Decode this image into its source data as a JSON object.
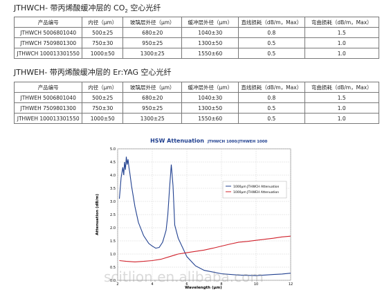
{
  "section1": {
    "title": "JTHWCH- 带丙烯酸缓冲层的 CO",
    "title_sub": "2",
    "title_end": " 空心光纤"
  },
  "table1": {
    "headers": [
      "产品编号",
      "内径（μm）",
      "玻璃层外径（μm）",
      "缓冲层外径（μm）",
      "直线损耗（dB/m，Max）",
      "弯曲损耗（dB/m，Max）"
    ],
    "rows": [
      [
        "JTHWCH 5006801040",
        "500±25",
        "680±20",
        "1040±30",
        "0.8",
        "1.5"
      ],
      [
        "JTHWCH 7509801300",
        "750±30",
        "950±25",
        "1300±50",
        "0.5",
        "1.0"
      ],
      [
        "JTHWCH 100013301550",
        "1000±50",
        "1300±25",
        "1550±60",
        "0.5",
        "1.0"
      ]
    ]
  },
  "section2": {
    "title": "JTHWEH- 带丙烯酸缓冲层的 Er:YAG 空心光纤"
  },
  "table2": {
    "headers": [
      "产品编号",
      "内径（μm）",
      "玻璃层外径（μm）",
      "缓冲层外径（μm）",
      "直线损耗（dB/m，Max）",
      "弯曲损耗（dB/m，Max）"
    ],
    "rows": [
      [
        "JTHWEH 5006801040",
        "500±25",
        "680±20",
        "1040±30",
        "0.8",
        "1.5"
      ],
      [
        "JTHWEH 7509801300",
        "750±30",
        "950±25",
        "1300±50",
        "0.5",
        "1.0"
      ],
      [
        "JTHWEH 100013301550",
        "1000±50",
        "1300±25",
        "1550±60",
        "0.5",
        "1.0"
      ]
    ]
  },
  "chart_data": {
    "type": "line",
    "title": "HSW Attenuation",
    "subtitle": "JTHWCH 1000/JTHWEH 1000",
    "x_label": "Wavelength (μm)",
    "y_label": "Attenuation (dB/m)",
    "xlim": [
      2,
      12
    ],
    "xticks": [
      2,
      4,
      6,
      8,
      10,
      12
    ],
    "ylim": [
      0,
      5
    ],
    "yticks": [
      {
        "value": 0,
        "label": "0.0"
      },
      {
        "value": 0.5,
        "label": "0.5"
      },
      {
        "value": 1,
        "label": "1.0"
      },
      {
        "value": 1.5,
        "label": "1.5"
      },
      {
        "value": 2,
        "label": "2.0"
      },
      {
        "value": 2.5,
        "label": "2.5"
      },
      {
        "value": 3,
        "label": "3.0"
      },
      {
        "value": 3.5,
        "label": "3.5"
      },
      {
        "value": 4,
        "label": "4.0"
      },
      {
        "value": 4.5,
        "label": "4.5"
      },
      {
        "value": 5,
        "label": "5.0"
      }
    ],
    "grid": true,
    "legend": "upper-right",
    "series": [
      {
        "name": "1000μm JTHWCH Attenuation",
        "color": "#1f3f8f",
        "x": [
          2.1,
          2.2,
          2.3,
          2.35,
          2.4,
          2.45,
          2.5,
          2.55,
          2.6,
          2.65,
          2.7,
          2.8,
          2.9,
          3.0,
          3.2,
          3.5,
          3.8,
          4.0,
          4.2,
          4.4,
          4.6,
          4.8,
          4.9,
          5.0,
          5.1,
          5.2,
          5.3,
          5.5,
          6.0,
          6.5,
          7.0,
          8.0,
          9.0,
          10.0,
          10.5,
          11.0,
          11.5,
          12.0
        ],
        "values": [
          3.1,
          3.9,
          4.3,
          4.0,
          4.5,
          4.2,
          4.7,
          4.4,
          4.6,
          4.3,
          4.1,
          3.6,
          3.2,
          2.8,
          2.2,
          1.7,
          1.4,
          1.3,
          1.22,
          1.25,
          1.45,
          1.9,
          2.5,
          3.5,
          4.4,
          3.6,
          2.1,
          1.6,
          0.9,
          0.55,
          0.38,
          0.25,
          0.2,
          0.18,
          0.2,
          0.22,
          0.24,
          0.27
        ]
      },
      {
        "name": "1000μm JTHWEH Attenuation",
        "color": "#d0202a",
        "x": [
          2.1,
          2.5,
          3,
          3.5,
          4,
          4.5,
          5,
          5.5,
          6,
          6.5,
          7,
          7.5,
          8,
          8.5,
          9,
          9.5,
          10,
          10.5,
          11,
          11.5,
          12
        ],
        "values": [
          0.75,
          0.72,
          0.7,
          0.72,
          0.75,
          0.8,
          0.9,
          1.0,
          1.05,
          1.1,
          1.15,
          1.22,
          1.3,
          1.38,
          1.45,
          1.48,
          1.52,
          1.56,
          1.6,
          1.65,
          1.68
        ]
      }
    ]
  },
  "watermark": "scitlion.en.alibaba.com"
}
